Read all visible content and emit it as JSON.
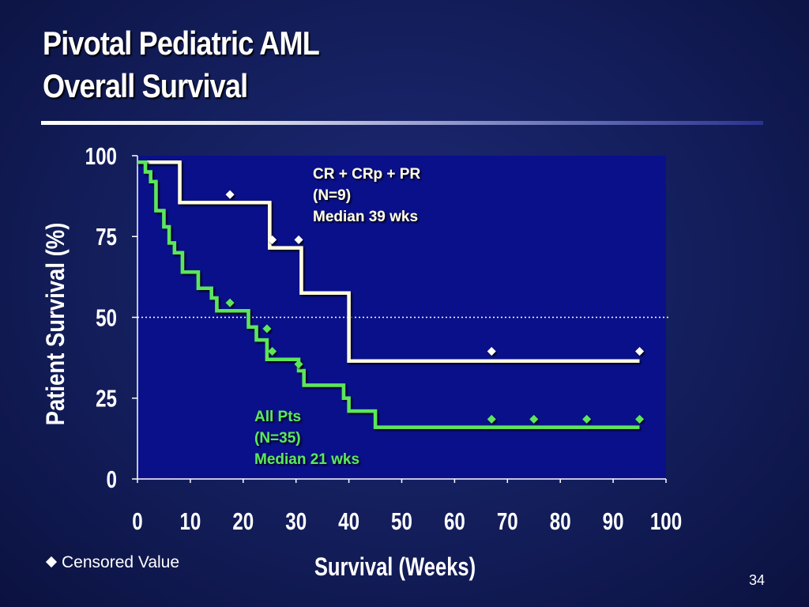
{
  "slide": {
    "title_line1": "Pivotal Pediatric AML",
    "title_line2": "Overall Survival",
    "legend_text": "Censored Value",
    "page_number": "34"
  },
  "chart_data": {
    "type": "line",
    "subtype": "kaplan-meier step",
    "title": "",
    "xlabel": "Survival (Weeks)",
    "ylabel": "Patient Survival (%)",
    "xlim": [
      0,
      100
    ],
    "ylim": [
      0,
      100
    ],
    "xticks": [
      0,
      10,
      20,
      30,
      40,
      50,
      60,
      70,
      80,
      90,
      100
    ],
    "yticks": [
      0,
      25,
      50,
      75,
      100
    ],
    "reference_line": {
      "y": 50,
      "style": "dotted"
    },
    "series": [
      {
        "annotation": [
          "CR + CRp + PR",
          "(N=9)",
          "Median 39 wks"
        ],
        "color": "#fffde0",
        "steps": [
          [
            0,
            98
          ],
          [
            8,
            98
          ],
          [
            8,
            85.5
          ],
          [
            25,
            85.5
          ],
          [
            25,
            71.5
          ],
          [
            31,
            71.5
          ],
          [
            31,
            57.5
          ],
          [
            40,
            57.5
          ],
          [
            40,
            36.5
          ],
          [
            95,
            36.5
          ]
        ],
        "censored": [
          [
            17.5,
            88
          ],
          [
            25.5,
            74
          ],
          [
            30.5,
            74
          ],
          [
            67,
            39.5
          ],
          [
            95,
            39.5
          ]
        ]
      },
      {
        "annotation": [
          "All Pts",
          "(N=35)",
          "Median 21 wks"
        ],
        "color": "#5ce65c",
        "steps": [
          [
            0,
            98
          ],
          [
            1.5,
            98
          ],
          [
            1.5,
            95
          ],
          [
            2.5,
            95
          ],
          [
            2.5,
            92
          ],
          [
            3.5,
            92
          ],
          [
            3.5,
            83
          ],
          [
            5,
            83
          ],
          [
            5,
            78
          ],
          [
            6,
            78
          ],
          [
            6,
            73
          ],
          [
            7,
            73
          ],
          [
            7,
            70
          ],
          [
            8.5,
            70
          ],
          [
            8.5,
            64
          ],
          [
            11.5,
            64
          ],
          [
            11.5,
            59
          ],
          [
            14,
            59
          ],
          [
            14,
            56
          ],
          [
            15,
            56
          ],
          [
            15,
            52
          ],
          [
            21,
            52
          ],
          [
            21,
            47
          ],
          [
            22.5,
            47
          ],
          [
            22.5,
            43
          ],
          [
            24.5,
            43
          ],
          [
            24.5,
            37
          ],
          [
            30.5,
            37
          ],
          [
            30.5,
            33.5
          ],
          [
            31.5,
            33.5
          ],
          [
            31.5,
            29
          ],
          [
            39,
            29
          ],
          [
            39,
            25
          ],
          [
            40,
            25
          ],
          [
            40,
            21
          ],
          [
            45,
            21
          ],
          [
            45,
            16
          ],
          [
            95,
            16
          ]
        ],
        "censored": [
          [
            17.5,
            54.5
          ],
          [
            24.5,
            46.5
          ],
          [
            25.5,
            39.5
          ],
          [
            30.5,
            35.5
          ],
          [
            67,
            18.5
          ],
          [
            75,
            18.5
          ],
          [
            85,
            18.5
          ],
          [
            95,
            18.5
          ]
        ]
      }
    ]
  }
}
